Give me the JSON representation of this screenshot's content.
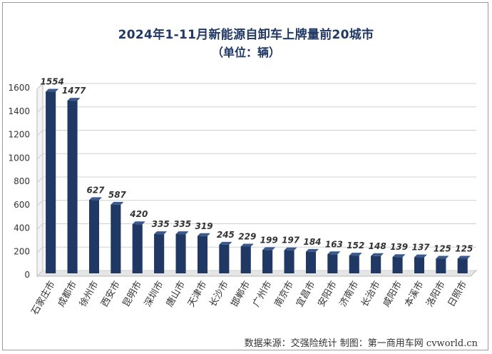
{
  "title": "2024年1-11月新能源自卸车上牌量前20城市",
  "subtitle": "（单位：辆）",
  "source": "数据来源：交强险统计  制图：第一商用车网 cvworld.cn",
  "colors": {
    "bar": "#1f3864",
    "bar_side": "#0f1e3a",
    "grid": "#d0d0d0",
    "title": "#1f3864"
  },
  "chart_data": {
    "type": "bar",
    "categories": [
      "石家庄市",
      "成都市",
      "徐州市",
      "西安市",
      "昆明市",
      "深圳市",
      "唐山市",
      "天津市",
      "长沙市",
      "邯郸市",
      "广州市",
      "南京市",
      "宜昌市",
      "安阳市",
      "济南市",
      "长治市",
      "咸阳市",
      "本溪市",
      "洛阳市",
      "日照市"
    ],
    "values": [
      1554,
      1477,
      627,
      587,
      420,
      335,
      335,
      319,
      245,
      229,
      199,
      197,
      184,
      163,
      152,
      148,
      139,
      137,
      125,
      125
    ],
    "ylim": [
      0,
      1600
    ],
    "yticks": [
      0,
      200,
      400,
      600,
      800,
      1000,
      1200,
      1400,
      1600
    ],
    "grid": true,
    "legend": "none"
  }
}
